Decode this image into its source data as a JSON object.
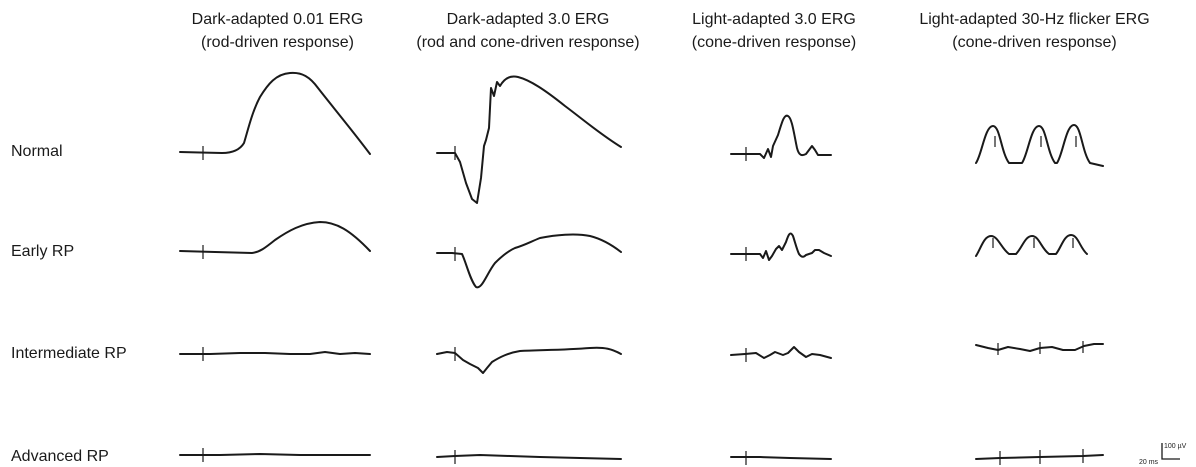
{
  "columns": [
    {
      "title_line1": "Dark-adapted 0.01 ERG",
      "title_line2": "(rod-driven response)"
    },
    {
      "title_line1": "Dark-adapted 3.0 ERG",
      "title_line2": "(rod and cone-driven response)"
    },
    {
      "title_line1": "Light-adapted 3.0 ERG",
      "title_line2": "(cone-driven response)"
    },
    {
      "title_line1": "Light-adapted 30-Hz flicker ERG",
      "title_line2": "(cone-driven response)"
    }
  ],
  "rows": [
    {
      "label": "Normal"
    },
    {
      "label": "Early RP"
    },
    {
      "label": "Intermediate RP"
    },
    {
      "label": "Advanced RP"
    }
  ],
  "scale_bar": {
    "amplitude_label": "100 µV",
    "time_label": "20 ms"
  }
}
